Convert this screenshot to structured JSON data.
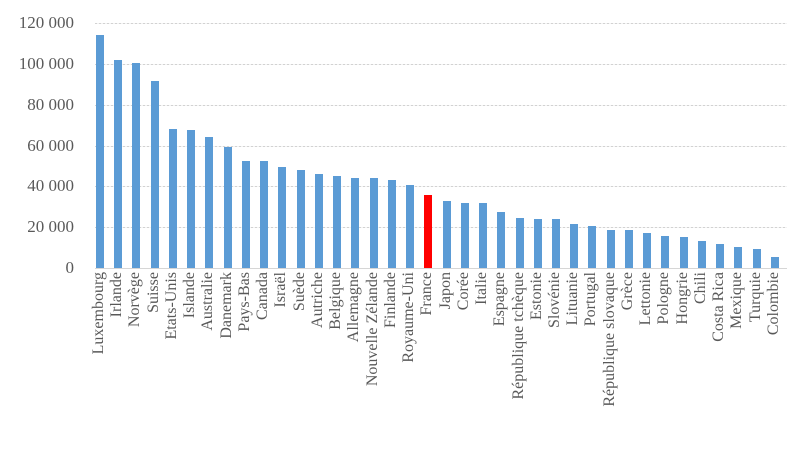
{
  "chart_data": {
    "type": "bar",
    "title": "",
    "xlabel": "",
    "ylabel": "",
    "ylim": [
      0,
      120000
    ],
    "ytick_step": 20000,
    "ytick_labels": [
      "0",
      "20 000",
      "40 000",
      "60 000",
      "80 000",
      "100 000",
      "120 000"
    ],
    "grid": true,
    "legend": false,
    "bar_color": "#5B9BD5",
    "highlight_color": "#FF0000",
    "highlight_category": "France",
    "text_color": "#595959",
    "gridline_color": "#D9D9D9",
    "categories": [
      "Luxembourg",
      "Irlande",
      "Norvège",
      "Suisse",
      "Etats-Unis",
      "Islande",
      "Australie",
      "Danemark",
      "Pays-Bas",
      "Canada",
      "Israël",
      "Suède",
      "Autriche",
      "Belgique",
      "Allemagne",
      "Nouvelle Zélande",
      "Finlande",
      "Royaume-Uni",
      "France",
      "Japon",
      "Corée",
      "Italie",
      "Espagne",
      "République tchèque",
      "Estonie",
      "Slovénie",
      "Lituanie",
      "Portugal",
      "République slovaque",
      "Grèce",
      "Lettonie",
      "Pologne",
      "Hongrie",
      "Chili",
      "Costa Rica",
      "Mexique",
      "Turquie",
      "Colombie"
    ],
    "values": [
      114000,
      102000,
      100500,
      91500,
      68000,
      67500,
      64000,
      59500,
      52300,
      52200,
      49500,
      48200,
      46000,
      44900,
      44000,
      43900,
      42900,
      40500,
      35800,
      33000,
      32000,
      31700,
      27300,
      24600,
      24100,
      23900,
      21600,
      20500,
      18800,
      18400,
      17200,
      15800,
      15300,
      13400,
      12000,
      10500,
      9200,
      5500
    ]
  }
}
